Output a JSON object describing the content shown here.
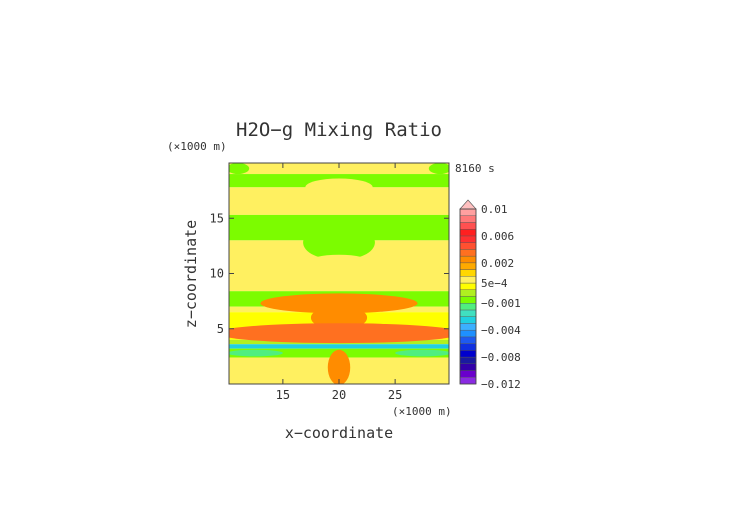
{
  "chart_data": {
    "type": "heatmap",
    "title": "H2O−g Mixing Ratio",
    "time_label": "8160 s",
    "xlabel": "x−coordinate",
    "ylabel": "z−coordinate",
    "x_unit": "(×1000 m)",
    "y_unit": "(×1000 m)",
    "xlim": [
      10.2,
      29.8
    ],
    "ylim": [
      0,
      20
    ],
    "x_ticks": [
      15,
      20,
      25
    ],
    "y_ticks": [
      5,
      10,
      15
    ],
    "grid": false,
    "legend": "right",
    "colorbar": {
      "levels": [
        -0.012,
        -0.011,
        -0.01,
        -0.009,
        -0.008,
        -0.007,
        -0.006,
        -0.005,
        -0.004,
        -0.003,
        -0.002,
        -0.0015,
        -0.001,
        -0.0005,
        0,
        0.0005,
        0.001,
        0.0015,
        0.002,
        0.003,
        0.004,
        0.005,
        0.006,
        0.007,
        0.008,
        0.009,
        0.01
      ],
      "tick_labels": [
        "0.01",
        "0.006",
        "0.002",
        "5e−4",
        "−0.001",
        "−0.004",
        "−0.008",
        "−0.012"
      ],
      "tick_values": [
        0.01,
        0.006,
        0.002,
        0.0005,
        -0.001,
        -0.004,
        -0.008,
        -0.012
      ],
      "colors": [
        "#8a2be2",
        "#6a00cc",
        "#3300aa",
        "#1a1aa0",
        "#0000cd",
        "#1030e0",
        "#1e5af0",
        "#1e90ff",
        "#3cb0ff",
        "#20d0e0",
        "#40e0c0",
        "#50ee80",
        "#7cfc00",
        "#b0f020",
        "#ffff00",
        "#fff060",
        "#ffd700",
        "#ffaa00",
        "#ff8c00",
        "#ff7020",
        "#ff5030",
        "#ff3030",
        "#ff2020",
        "#ff5050",
        "#ff7878",
        "#ffa0a0",
        "#ffc0c0"
      ]
    },
    "field_bands": [
      {
        "z": [
          19.0,
          20.0
        ],
        "value": 0.0006
      },
      {
        "z": [
          17.8,
          19.0
        ],
        "value": -0.0007
      },
      {
        "z": [
          15.3,
          17.8
        ],
        "value": 0.0006
      },
      {
        "z": [
          13.0,
          15.3
        ],
        "value": -0.0007
      },
      {
        "z": [
          8.4,
          13.0
        ],
        "value": 0.0006
      },
      {
        "z": [
          7.0,
          8.4
        ],
        "value": -0.0007
      },
      {
        "z": [
          6.5,
          7.0
        ],
        "value": 0.0006
      },
      {
        "z": [
          4.0,
          6.5
        ],
        "value": 0.0003
      },
      {
        "z": [
          3.6,
          4.0
        ],
        "value": -0.0002
      },
      {
        "z": [
          3.2,
          3.6
        ],
        "value": -0.003
      },
      {
        "z": [
          2.4,
          3.2
        ],
        "value": -0.0007
      },
      {
        "z": [
          0.0,
          2.4
        ],
        "value": 0.0006
      }
    ],
    "field_blobs": [
      {
        "x": 20,
        "z": 7.3,
        "rx": 7.0,
        "rz": 0.9,
        "value": 0.0025
      },
      {
        "x": 20,
        "z": 6.0,
        "rx": 2.5,
        "rz": 1.1,
        "value": 0.0025
      },
      {
        "x": 20,
        "z": 4.6,
        "rx": 11.0,
        "rz": 0.9,
        "value": 0.003
      },
      {
        "x": 20,
        "z": 1.5,
        "rx": 1.0,
        "rz": 1.6,
        "value": 0.0025
      },
      {
        "x": 12.5,
        "z": 2.8,
        "rx": 2.5,
        "rz": 0.3,
        "value": -0.0015
      },
      {
        "x": 27.5,
        "z": 2.8,
        "rx": 2.5,
        "rz": 0.3,
        "value": -0.0015
      },
      {
        "x": 20,
        "z": 12.8,
        "rx": 3.2,
        "rz": 1.6,
        "value": -0.0007
      },
      {
        "x": 20,
        "z": 11.0,
        "rx": 2.8,
        "rz": 0.7,
        "value": 0.0008
      },
      {
        "x": 20,
        "z": 17.8,
        "rx": 3.0,
        "rz": 0.8,
        "value": 0.0006
      },
      {
        "x": 11.0,
        "z": 19.5,
        "rx": 1.0,
        "rz": 0.5,
        "value": -0.0007
      },
      {
        "x": 29.0,
        "z": 19.5,
        "rx": 1.0,
        "rz": 0.5,
        "value": -0.0007
      }
    ]
  }
}
